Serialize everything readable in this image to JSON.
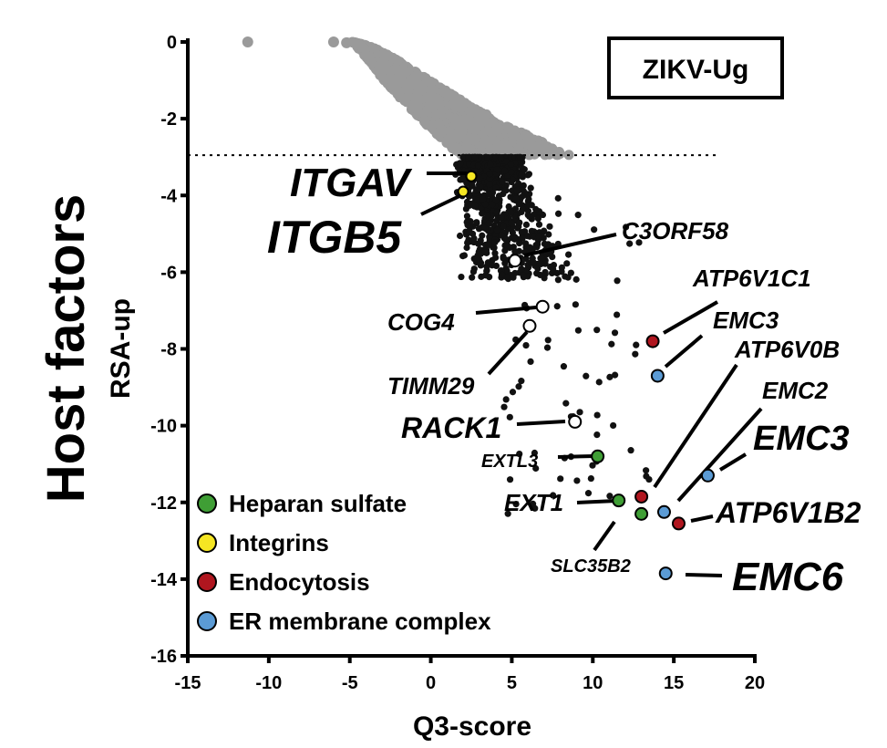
{
  "chart_data": {
    "type": "scatter",
    "title": "ZIKV-Ug",
    "ylabel": "Host factors",
    "ylabel_sub": "RSA-up",
    "xlabel": "Q3-score",
    "xlim": [
      -15,
      20
    ],
    "ylim": [
      -16,
      0
    ],
    "x_ticks": [
      "-15",
      "-10",
      "-5",
      "0",
      "5",
      "10",
      "15",
      "20"
    ],
    "y_ticks": [
      "0",
      "-2",
      "-4",
      "-6",
      "-8",
      "-10",
      "-12",
      "-14",
      "-16"
    ],
    "threshold_y": -2.95,
    "grid": false,
    "legend_position": "bottom-left",
    "colors": {
      "background": "#9a9a9a",
      "hit": "#111111",
      "heparan_sulfate": "#3f9e35",
      "integrins": "#f5e623",
      "endocytosis": "#b0161f",
      "er_membrane_complex": "#5b9bd5",
      "open_marker": "#ffffff"
    },
    "legend": [
      {
        "label": "Heparan sulfate",
        "color": "#3f9e35"
      },
      {
        "label": "Integrins",
        "color": "#f5e623"
      },
      {
        "label": "Endocytosis",
        "color": "#b0161f"
      },
      {
        "label": "ER membrane complex",
        "color": "#5b9bd5"
      }
    ],
    "highlighted": [
      {
        "label": "ITGAV",
        "x": 2.5,
        "y": -3.5,
        "group": "integrins"
      },
      {
        "label": "ITGB5",
        "x": 2.0,
        "y": -3.9,
        "group": "integrins"
      },
      {
        "label": "C3ORF58",
        "x": 5.2,
        "y": -5.7,
        "group": "open"
      },
      {
        "label": "COG4",
        "x": 6.9,
        "y": -6.9,
        "group": "open"
      },
      {
        "label": "TIMM29",
        "x": 6.1,
        "y": -7.4,
        "group": "open"
      },
      {
        "label": "RACK1",
        "x": 8.9,
        "y": -9.9,
        "group": "open"
      },
      {
        "label": "EXTL3",
        "x": 10.3,
        "y": -10.8,
        "group": "heparan_sulfate"
      },
      {
        "label": "EXT1",
        "x": 11.6,
        "y": -11.95,
        "group": "heparan_sulfate"
      },
      {
        "label": "SLC35B2",
        "x": 13.0,
        "y": -12.3,
        "group": "heparan_sulfate"
      },
      {
        "label": "ATP6V1C1",
        "x": 13.7,
        "y": -7.8,
        "group": "endocytosis"
      },
      {
        "label": "ATP6V0B",
        "x": 13.0,
        "y": -11.85,
        "group": "endocytosis"
      },
      {
        "label": "ATP6V1B2",
        "x": 15.3,
        "y": -12.55,
        "group": "endocytosis"
      },
      {
        "label": "EMC3",
        "x": 14.0,
        "y": -8.7,
        "group": "er_membrane_complex"
      },
      {
        "label": "EMC2",
        "x": 14.4,
        "y": -12.25,
        "group": "er_membrane_complex"
      },
      {
        "label": "EMC3",
        "x": 17.1,
        "y": -11.3,
        "group": "er_membrane_complex"
      },
      {
        "label": "EMC6",
        "x": 14.5,
        "y": -13.85,
        "group": "er_membrane_complex"
      }
    ]
  }
}
